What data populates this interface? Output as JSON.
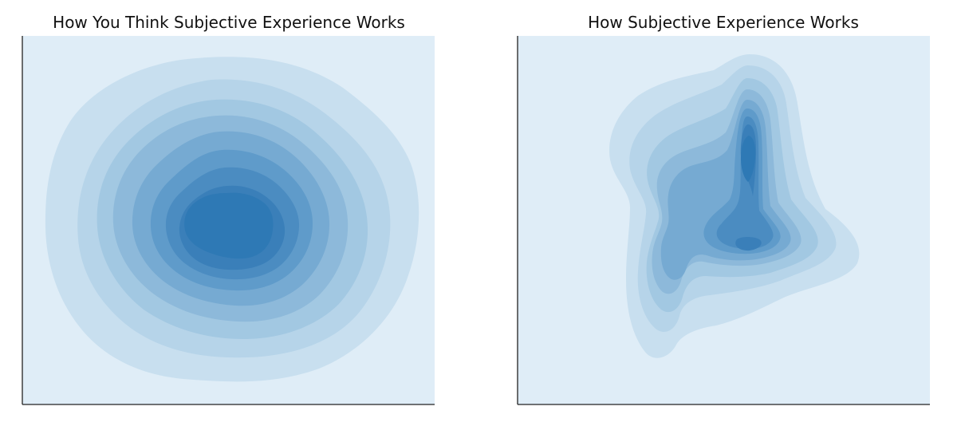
{
  "chart_data": [
    {
      "type": "kde-contour",
      "title": "How You Think Subjective Experience Works",
      "xlabel": "",
      "ylabel": "",
      "axes": {
        "ticks": false,
        "spines": [
          "left",
          "bottom"
        ]
      },
      "levels": 9,
      "colors": [
        "#dfedf7",
        "#c8dfef",
        "#b6d4e9",
        "#a2c8e2",
        "#8db9da",
        "#76aad2",
        "#5f9bca",
        "#4b8cc1",
        "#3a7fb9",
        "#2e79b5"
      ],
      "density_peak": {
        "x": 0.52,
        "y": 0.49
      }
    },
    {
      "type": "kde-contour",
      "title": "How Subjective Experience Works",
      "xlabel": "",
      "ylabel": "",
      "axes": {
        "ticks": false,
        "spines": [
          "left",
          "bottom"
        ]
      },
      "levels": 9,
      "colors": [
        "#dfedf7",
        "#c8dfef",
        "#b6d4e9",
        "#a2c8e2",
        "#8db9da",
        "#76aad2",
        "#5f9bca",
        "#4b8cc1",
        "#3a7fb9",
        "#2e79b5"
      ],
      "density_peaks": [
        {
          "x": 0.56,
          "y": 0.68
        },
        {
          "x": 0.56,
          "y": 0.43
        },
        {
          "x": 0.34,
          "y": 0.35
        },
        {
          "x": 0.32,
          "y": 0.67
        }
      ]
    }
  ]
}
